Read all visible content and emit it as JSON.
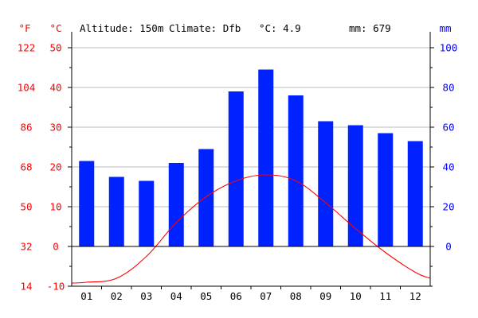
{
  "header": {
    "altitude": "Altitude: 150m",
    "climate": "Climate: Dfb",
    "temp_mean": "°C: 4.9",
    "precip_total": "mm: 679"
  },
  "axes": {
    "fahrenheit_unit": "°F",
    "celsius_unit": "°C",
    "mm_unit": "mm",
    "fahrenheit_ticks": [
      "14",
      "32",
      "50",
      "68",
      "86",
      "104",
      "122"
    ],
    "celsius_ticks": [
      "-10",
      "0",
      "10",
      "20",
      "30",
      "40",
      "50"
    ],
    "mm_ticks": [
      "0",
      "20",
      "40",
      "60",
      "80",
      "100"
    ]
  },
  "colors": {
    "precip_bar": "#0022ff",
    "temperature_line": "#ff0000",
    "left_axis_text": "#ff0000",
    "right_axis_text": "#0000ff",
    "grid": "#bbbbbb"
  },
  "chart_data": {
    "type": "bar",
    "categories": [
      "01",
      "02",
      "03",
      "04",
      "05",
      "06",
      "07",
      "08",
      "09",
      "10",
      "11",
      "12"
    ],
    "series": [
      {
        "type": "bar",
        "axis": "right",
        "values": [
          43,
          35,
          33,
          42,
          49,
          78,
          89,
          76,
          63,
          61,
          57,
          53
        ]
      },
      {
        "type": "line",
        "axis": "left",
        "values": [
          -9,
          -8,
          -2.5,
          6,
          12.5,
          16.5,
          18,
          16.5,
          11,
          4.5,
          -1.5,
          -6.5
        ]
      }
    ],
    "y_left_celsius": {
      "lim": [
        -10,
        50
      ]
    },
    "y_left_fahrenheit": {
      "lim": [
        14,
        122
      ]
    },
    "y_right_mm": {
      "lim": [
        0,
        100
      ]
    },
    "grid": true,
    "legend": "none"
  }
}
